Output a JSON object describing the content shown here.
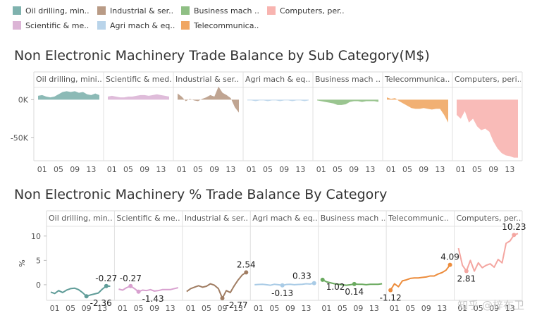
{
  "legend": [
    {
      "label": "Oil drilling, min..",
      "color": "#7fb2ae"
    },
    {
      "label": "Industrial & ser..",
      "color": "#b99b86"
    },
    {
      "label": "Business mach ..",
      "color": "#8fbf84"
    },
    {
      "label": "Computers, per..",
      "color": "#f8b4b0"
    },
    {
      "label": "Scientific & me..",
      "color": "#dcb5d6"
    },
    {
      "label": "Agri mach & eq..",
      "color": "#b9d4ea"
    },
    {
      "label": "Telecommunica..",
      "color": "#f0a764"
    }
  ],
  "chart_data": [
    {
      "type": "area",
      "title": "Non Electronic Machinery Trade Balance by Sub Category(M$)",
      "x": [
        0,
        1,
        2,
        3,
        4,
        5,
        6,
        7,
        8,
        9,
        10,
        11,
        12,
        13,
        14,
        15
      ],
      "x_tick_labels": [
        "01",
        "05",
        "09",
        "13"
      ],
      "x_ticks": [
        1,
        5,
        9,
        13
      ],
      "y_ticks": [
        {
          "v": 0,
          "label": "0K"
        },
        {
          "v": -50,
          "label": "-50K"
        }
      ],
      "ylim": [
        -80,
        16
      ],
      "panels": [
        {
          "name": "Oil drilling, mini..",
          "color": "#7fb2ae",
          "values": [
            5,
            6,
            4,
            3,
            4,
            7,
            10,
            11,
            10,
            11,
            9,
            10,
            7,
            6,
            8,
            6
          ]
        },
        {
          "name": "Scientific & med..",
          "color": "#dcb5d6",
          "values": [
            4,
            5,
            4,
            3,
            3,
            4,
            4,
            5,
            6,
            6,
            5,
            6,
            7,
            6,
            5,
            4
          ]
        },
        {
          "name": "Industrial & ser..",
          "color": "#b99b86",
          "values": [
            8,
            4,
            -2,
            1,
            -1,
            -2,
            1,
            3,
            6,
            4,
            17,
            9,
            6,
            2,
            -10,
            -17
          ]
        },
        {
          "name": "Agri mach & eq..",
          "color": "#b9d4ea",
          "values": [
            -1,
            -1,
            -2,
            -1,
            -1,
            -2,
            -1,
            -1,
            -2,
            -1,
            -1,
            -2,
            -1,
            -1,
            -2,
            -1
          ]
        },
        {
          "name": "Business mach ..",
          "color": "#8fbf84",
          "values": [
            -1,
            -2,
            -3,
            -4,
            -5,
            -7,
            -7,
            -6,
            -3,
            -2,
            -2,
            -3,
            -2,
            -2,
            -2,
            -3
          ]
        },
        {
          "name": "Telecommunica..",
          "color": "#f0a764",
          "values": [
            3,
            1,
            2,
            -2,
            -5,
            -8,
            -11,
            -12,
            -12,
            -11,
            -12,
            -13,
            -12,
            -12,
            -20,
            -30
          ]
        },
        {
          "name": "Computers, peri..",
          "color": "#f8b4b0",
          "values": [
            -20,
            -25,
            -15,
            -30,
            -25,
            -35,
            -40,
            -38,
            -42,
            -55,
            -64,
            -70,
            -73,
            -74,
            -76,
            -76
          ]
        }
      ]
    },
    {
      "type": "line",
      "title": "Non Electronic Machinery % Trade Balance By Category",
      "ylabel": "%",
      "x": [
        0,
        1,
        2,
        3,
        4,
        5,
        6,
        7,
        8,
        9,
        10,
        11,
        12,
        13,
        14,
        15
      ],
      "x_tick_labels": [
        "01",
        "05",
        "09",
        "13"
      ],
      "x_ticks": [
        1,
        5,
        9,
        13
      ],
      "y_ticks": [
        10,
        5,
        0
      ],
      "ylim": [
        -3.2,
        12
      ],
      "panels": [
        {
          "name": "Oil drilling, min..",
          "color": "#5f9c98",
          "values": [
            -1.5,
            -1.8,
            -1.2,
            -1.6,
            -1.1,
            -0.8,
            -0.7,
            -1.0,
            -1.6,
            -2.36,
            -2.1,
            -1.9,
            -1.7,
            -0.9,
            -0.27,
            -0.3
          ],
          "labels": [
            {
              "i": 9,
              "text": "-2.36",
              "pos": "right"
            },
            {
              "i": 14,
              "text": "-0.27",
              "pos": "above"
            }
          ]
        },
        {
          "name": "Scientific & me..",
          "color": "#d8a0cf",
          "values": [
            -0.9,
            -1.1,
            -0.6,
            -0.27,
            -0.8,
            -1.43,
            -1.1,
            -1.2,
            -1.0,
            -1.3,
            -1.2,
            -1.0,
            -1.0,
            -1.0,
            -0.8,
            -0.6
          ],
          "labels": [
            {
              "i": 3,
              "text": "-0.27",
              "pos": "above"
            },
            {
              "i": 5,
              "text": "-1.43",
              "pos": "right"
            }
          ]
        },
        {
          "name": "Industrial & ser..",
          "color": "#a07d63",
          "values": [
            -1.4,
            -0.8,
            -0.5,
            -0.2,
            -0.5,
            -0.3,
            0.2,
            -0.1,
            -0.8,
            -2.77,
            -1.2,
            -1.6,
            -0.2,
            1.0,
            2.0,
            2.54
          ],
          "labels": [
            {
              "i": 9,
              "text": "-2.77",
              "pos": "right"
            },
            {
              "i": 15,
              "text": "2.54",
              "pos": "above"
            }
          ]
        },
        {
          "name": "Agri mach & eq..",
          "color": "#a9cbe6",
          "values": [
            0.0,
            0.05,
            0.1,
            0.0,
            -0.1,
            0.1,
            0.0,
            -0.13,
            0.05,
            0.1,
            0.0,
            0.05,
            0.1,
            0.2,
            0.15,
            0.33
          ],
          "labels": [
            {
              "i": 7,
              "text": "-0.13",
              "pos": "below"
            },
            {
              "i": 15,
              "text": "0.33",
              "pos": "left"
            }
          ]
        },
        {
          "name": "Business mach ..",
          "color": "#6aaa5f",
          "values": [
            1.02,
            0.6,
            0.4,
            0.2,
            0.1,
            0.0,
            -0.1,
            0.0,
            0.14,
            0.1,
            0.1,
            0.0,
            0.1,
            0.1,
            0.1,
            0.2
          ],
          "labels": [
            {
              "i": 0,
              "text": "1.02",
              "pos": "right"
            },
            {
              "i": 8,
              "text": "0.14",
              "pos": "below"
            }
          ]
        },
        {
          "name": "Telecommunic..",
          "color": "#ec8c3c",
          "values": [
            -1.12,
            0.2,
            -0.4,
            0.8,
            1.0,
            1.3,
            1.4,
            1.4,
            1.5,
            1.6,
            1.8,
            1.8,
            2.2,
            2.5,
            3.0,
            4.09
          ],
          "labels": [
            {
              "i": 0,
              "text": "-1.12",
              "pos": "below"
            },
            {
              "i": 15,
              "text": "4.09",
              "pos": "above"
            }
          ]
        },
        {
          "name": "Computers, per..",
          "color": "#f4a6a1",
          "values": [
            7.5,
            4.0,
            2.81,
            5.0,
            2.8,
            4.5,
            3.5,
            4.0,
            4.3,
            3.6,
            5.2,
            4.5,
            8.5,
            9.0,
            10.23,
            10.5
          ],
          "labels": [
            {
              "i": 2,
              "text": "2.81",
              "pos": "below"
            },
            {
              "i": 14,
              "text": "10.23",
              "pos": "above"
            }
          ]
        }
      ]
    }
  ],
  "watermark": "知乎 @梓布卫"
}
